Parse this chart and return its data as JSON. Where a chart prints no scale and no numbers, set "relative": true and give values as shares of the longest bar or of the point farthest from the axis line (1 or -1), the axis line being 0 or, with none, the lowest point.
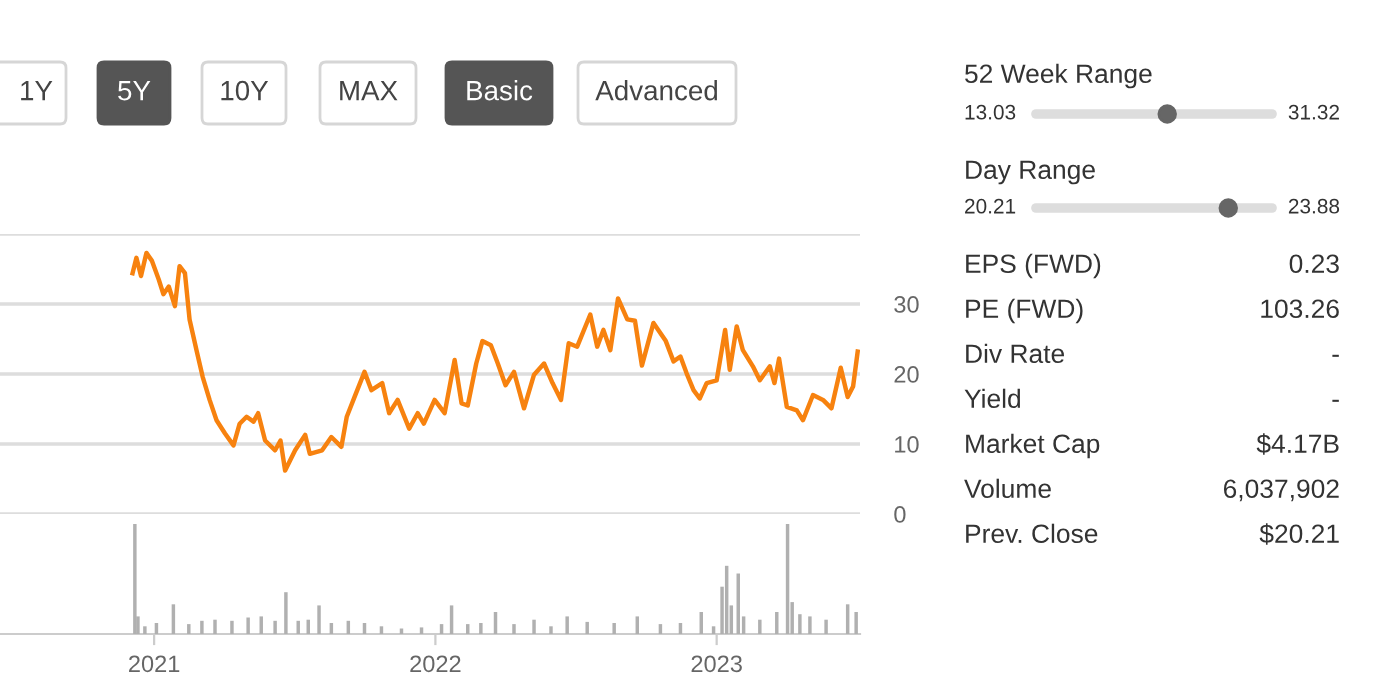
{
  "chart_data": [
    {
      "type": "other",
      "annotations": [
        "1Y",
        "5Y",
        "10Y",
        "MAX",
        "Basic",
        "Advanced"
      ],
      "colors": [
        "#ffffff",
        "#555555",
        "#ffffff",
        "#ffffff",
        "#555555",
        "#ffffff"
      ]
    },
    {
      "type": "line",
      "x": [
        "2020-12-04",
        "2020-12-09",
        "2020-12-15",
        "2020-12-22",
        "2020-12-29",
        "2021-01-07",
        "2021-01-13",
        "2021-01-20",
        "2021-01-28",
        "2021-02-03",
        "2021-02-10",
        "2021-02-16",
        "2021-02-25",
        "2021-03-05",
        "2021-03-14",
        "2021-03-23",
        "2021-04-03",
        "2021-04-14",
        "2021-04-22",
        "2021-05-01",
        "2021-05-10",
        "2021-05-16",
        "2021-05-25",
        "2021-06-07",
        "2021-06-14",
        "2021-06-20",
        "2021-07-03",
        "2021-07-16",
        "2021-07-22",
        "2021-08-07",
        "2021-08-19",
        "2021-09-01",
        "2021-09-08",
        "2021-09-18",
        "2021-10-01",
        "2021-10-10",
        "2021-10-24",
        "2021-11-02",
        "2021-11-13",
        "2021-11-28",
        "2021-12-09",
        "2021-12-17",
        "2021-12-31",
        "2022-01-13",
        "2022-01-26",
        "2022-02-04",
        "2022-02-12",
        "2022-02-23",
        "2022-03-03",
        "2022-03-14",
        "2022-03-23",
        "2022-04-02",
        "2022-04-13",
        "2022-04-26",
        "2022-05-09",
        "2022-05-22",
        "2022-06-02",
        "2022-06-13",
        "2022-06-23",
        "2022-07-04",
        "2022-07-21",
        "2022-07-30",
        "2022-08-07",
        "2022-08-16",
        "2022-08-26",
        "2022-09-07",
        "2022-09-17",
        "2022-09-26",
        "2022-10-11",
        "2022-10-27",
        "2022-11-06",
        "2022-11-15",
        "2022-11-23",
        "2022-12-02",
        "2022-12-10",
        "2022-12-19",
        "2023-01-01",
        "2023-01-12",
        "2023-01-18",
        "2023-01-27",
        "2023-02-04",
        "2023-02-17",
        "2023-02-26",
        "2023-03-11",
        "2023-03-17",
        "2023-03-23",
        "2023-04-02",
        "2023-04-15",
        "2023-04-23",
        "2023-05-06",
        "2023-05-19",
        "2023-05-30",
        "2023-06-11",
        "2023-06-20",
        "2023-06-27",
        "2023-07-03"
      ],
      "series": [
        {
          "color": "#f7820f",
          "values": [
            34.4,
            36.6,
            34.0,
            37.3,
            36.2,
            33.5,
            31.4,
            32.5,
            29.7,
            35.4,
            34.4,
            27.8,
            23.4,
            19.6,
            16.3,
            13.4,
            11.5,
            9.8,
            12.9,
            13.9,
            13.2,
            14.4,
            10.5,
            9.1,
            10.5,
            6.2,
            9.1,
            11.3,
            8.6,
            9.1,
            11.0,
            9.6,
            13.9,
            16.7,
            20.3,
            17.7,
            18.7,
            14.4,
            16.3,
            12.2,
            14.4,
            12.9,
            16.3,
            14.4,
            22.0,
            15.8,
            15.5,
            21.5,
            24.7,
            24.1,
            21.5,
            18.4,
            20.3,
            15.1,
            19.9,
            21.5,
            18.7,
            16.3,
            24.4,
            23.9,
            28.5,
            23.9,
            26.3,
            23.4,
            30.8,
            27.8,
            27.6,
            21.2,
            27.3,
            24.7,
            21.8,
            22.5,
            20.1,
            17.7,
            16.5,
            18.7,
            19.1,
            26.3,
            20.6,
            26.8,
            23.4,
            21.1,
            19.1,
            21.1,
            18.7,
            22.2,
            15.3,
            14.8,
            13.4,
            17.0,
            16.3,
            15.1,
            20.9,
            16.7,
            18.2,
            23.2
          ]
        }
      ],
      "xlim": [
        "2020-06-15",
        "2023-07-06"
      ],
      "ylim": [
        0,
        40
      ],
      "yticks": [
        0,
        10,
        20,
        30,
        {
          "value": 40,
          "label": null
        }
      ],
      "grid": "y",
      "tick_labels": "y",
      "line_style": "solid"
    },
    {
      "type": "bar",
      "relative": true,
      "x": [
        "2020-12-07",
        "2020-12-11",
        "2020-12-20",
        "2021-01-04",
        "2021-01-26",
        "2021-02-15",
        "2021-03-04",
        "2021-03-21",
        "2021-04-12",
        "2021-05-03",
        "2021-05-20",
        "2021-06-07",
        "2021-06-21",
        "2021-07-07",
        "2021-07-20",
        "2021-08-03",
        "2021-08-19",
        "2021-09-10",
        "2021-10-01",
        "2021-10-23",
        "2021-11-18",
        "2021-12-14",
        "2022-01-09",
        "2022-01-22",
        "2022-02-12",
        "2022-03-01",
        "2022-03-20",
        "2022-04-13",
        "2022-05-09",
        "2022-05-31",
        "2022-06-21",
        "2022-07-17",
        "2022-08-21",
        "2022-09-20",
        "2022-10-20",
        "2022-11-15",
        "2022-12-12",
        "2022-12-28",
        "2023-01-08",
        "2023-01-14",
        "2023-01-20",
        "2023-01-29",
        "2023-02-05",
        "2023-02-26",
        "2023-03-20",
        "2023-04-03",
        "2023-04-09",
        "2023-04-19",
        "2023-05-02",
        "2023-05-23",
        "2023-06-20",
        "2023-07-01"
      ],
      "series": [
        {
          "color": "#b0b0b0",
          "values": [
            1.0,
            0.16,
            0.07,
            0.1,
            0.27,
            0.09,
            0.12,
            0.13,
            0.12,
            0.15,
            0.16,
            0.12,
            0.38,
            0.12,
            0.13,
            0.26,
            0.1,
            0.12,
            0.1,
            0.07,
            0.05,
            0.06,
            0.09,
            0.26,
            0.09,
            0.1,
            0.2,
            0.09,
            0.13,
            0.07,
            0.16,
            0.11,
            0.1,
            0.16,
            0.09,
            0.1,
            0.2,
            0.07,
            0.43,
            0.62,
            0.26,
            0.55,
            0.16,
            0.13,
            0.2,
            1.0,
            0.29,
            0.18,
            0.16,
            0.13,
            0.27,
            0.2
          ]
        }
      ],
      "xlim": [
        "2020-06-15",
        "2023-07-06"
      ],
      "xticks": [
        "2021",
        "2022",
        "2023"
      ],
      "tick_labels": "x"
    },
    {
      "type": "other",
      "annotations": [
        "52 Week Range",
        "13.03",
        "31.32",
        "Day Range",
        "20.21",
        "23.88",
        "EPS (FWD)",
        "0.23",
        "PE (FWD)",
        "103.26",
        "Div Rate",
        "-",
        "Yield",
        "-",
        "Market Cap",
        "$4.17B",
        "Volume",
        "6,037,902",
        "Prev. Close",
        "$20.21"
      ]
    }
  ]
}
